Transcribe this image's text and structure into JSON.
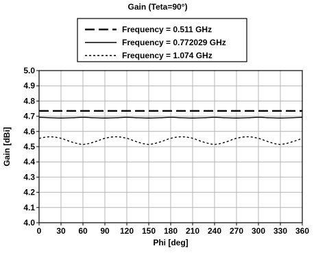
{
  "chart_data": {
    "type": "line",
    "title": "Gain (Teta=90°)",
    "xlabel": "Phi [deg]",
    "ylabel": "Gain [dBi]",
    "xlim": [
      0,
      360
    ],
    "ylim": [
      4.0,
      5.0
    ],
    "grid": true,
    "legend_position": "top-center",
    "x_ticks": [
      0,
      30,
      60,
      90,
      120,
      150,
      180,
      210,
      240,
      270,
      300,
      330,
      360
    ],
    "y_ticks": [
      4.0,
      4.1,
      4.2,
      4.3,
      4.4,
      4.5,
      4.6,
      4.7,
      4.8,
      4.9,
      5.0
    ],
    "x_tick_labels": [
      "0",
      "30",
      "60",
      "90",
      "120",
      "150",
      "180",
      "210",
      "240",
      "270",
      "300",
      "330",
      "360"
    ],
    "y_tick_labels": [
      "4.0",
      "4.1",
      "4.2",
      "4.3",
      "4.4",
      "4.5",
      "4.6",
      "4.7",
      "4.8",
      "4.9",
      "5.0"
    ],
    "x": [
      0,
      15,
      30,
      45,
      60,
      75,
      90,
      105,
      120,
      135,
      150,
      165,
      180,
      195,
      210,
      225,
      240,
      255,
      270,
      285,
      300,
      315,
      330,
      345,
      360
    ],
    "series": [
      {
        "name": "Frequency = 0.511 GHz",
        "style": "dashed-long",
        "color": "#000000",
        "values": [
          4.735,
          4.735,
          4.735,
          4.735,
          4.735,
          4.735,
          4.735,
          4.735,
          4.735,
          4.735,
          4.735,
          4.735,
          4.735,
          4.735,
          4.735,
          4.735,
          4.735,
          4.735,
          4.735,
          4.735,
          4.735,
          4.735,
          4.735,
          4.735,
          4.735
        ]
      },
      {
        "name": "Frequency = 0.772029 GHz",
        "style": "solid",
        "color": "#000000",
        "values": [
          4.693,
          4.69,
          4.688,
          4.69,
          4.693,
          4.69,
          4.688,
          4.69,
          4.693,
          4.69,
          4.688,
          4.69,
          4.693,
          4.69,
          4.688,
          4.69,
          4.693,
          4.69,
          4.688,
          4.69,
          4.693,
          4.69,
          4.688,
          4.69,
          4.693
        ]
      },
      {
        "name": "Frequency = 1.074 GHz",
        "style": "dotted-short",
        "color": "#000000",
        "values": [
          4.555,
          4.565,
          4.555,
          4.53,
          4.515,
          4.53,
          4.555,
          4.565,
          4.555,
          4.53,
          4.515,
          4.53,
          4.555,
          4.565,
          4.555,
          4.53,
          4.515,
          4.53,
          4.555,
          4.565,
          4.555,
          4.53,
          4.515,
          4.53,
          4.555
        ]
      }
    ]
  }
}
